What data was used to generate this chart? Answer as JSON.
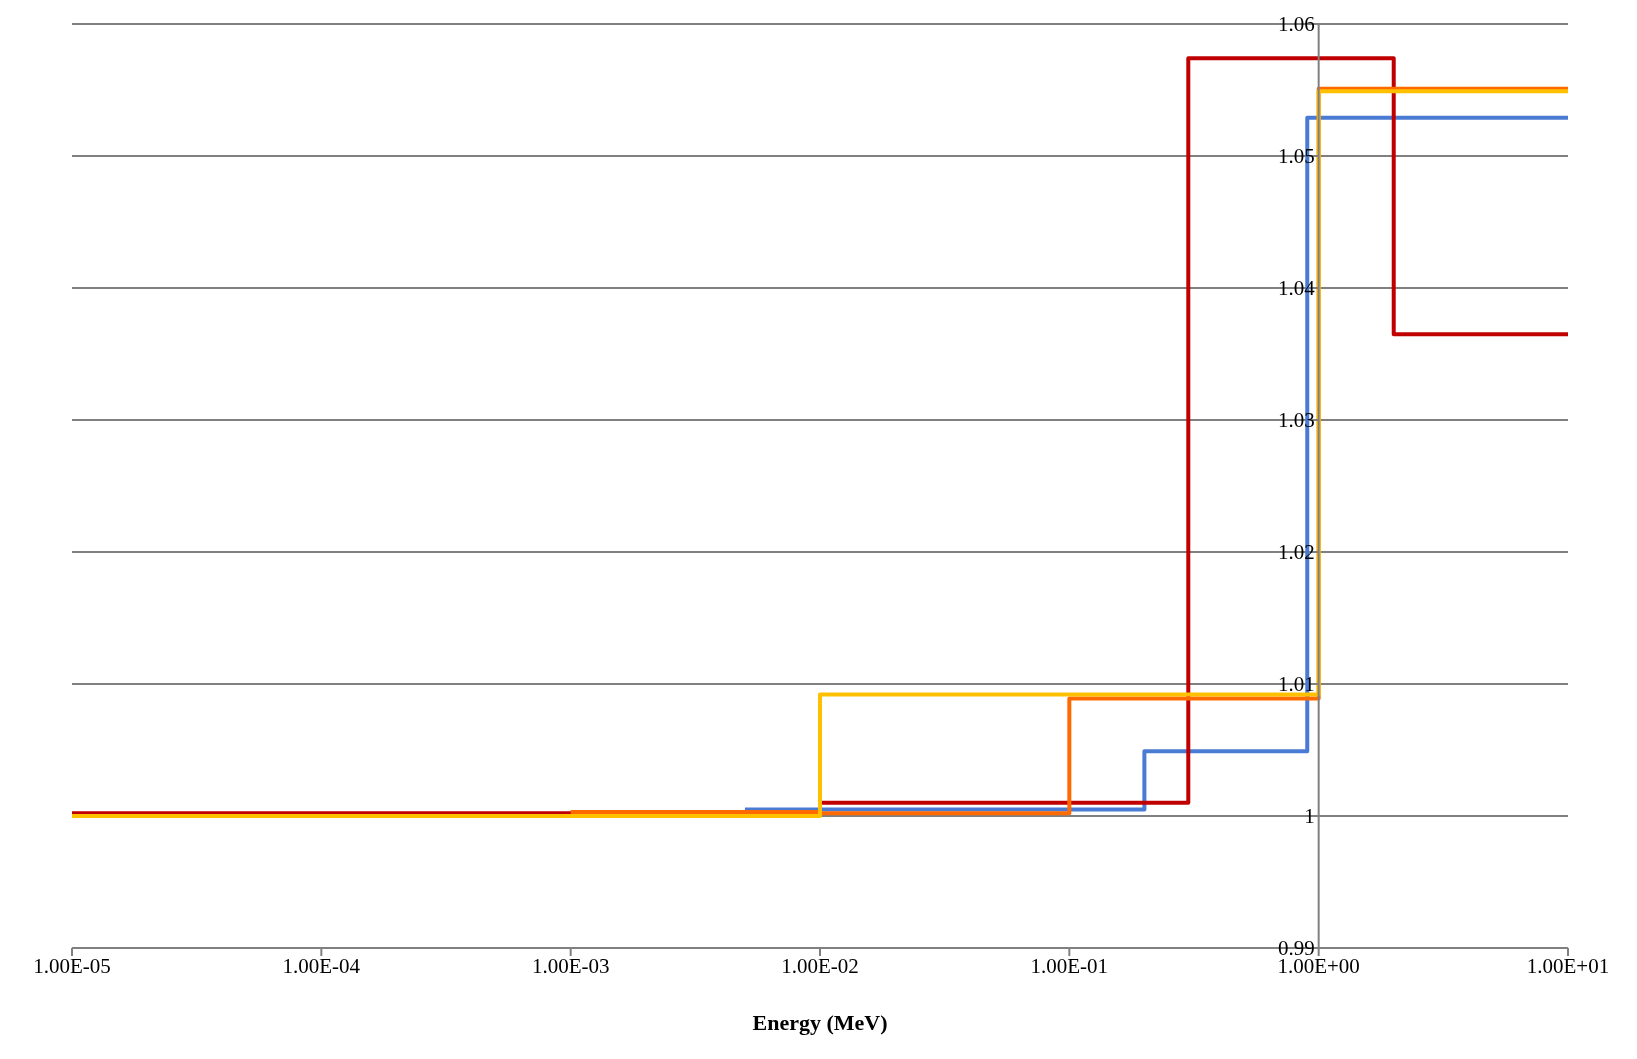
{
  "chart_data": {
    "type": "step",
    "xlabel": "Energy (MeV)",
    "log": "x",
    "grid": "y",
    "legend": false,
    "marker": "none",
    "line_style": "solid",
    "xlim": [
      1e-05,
      10
    ],
    "xticks": [
      {
        "value": 1e-05,
        "label": "1.00E-05"
      },
      {
        "value": 0.0001,
        "label": "1.00E-04"
      },
      {
        "value": 0.001,
        "label": "1.00E-03"
      },
      {
        "value": 0.01,
        "label": "1.00E-02"
      },
      {
        "value": 0.1,
        "label": "1.00E-01"
      },
      {
        "value": 1,
        "label": "1.00E+00"
      },
      {
        "value": 10,
        "label": "1.00E+01"
      }
    ],
    "ylim": [
      0.99,
      1.06
    ],
    "yticks": [
      0.99,
      1,
      1.01,
      1.02,
      1.03,
      1.04,
      1.05,
      1.06
    ],
    "series": [
      {
        "color": "#4a7bd4",
        "x": [
          0.005,
          0.2,
          0.9,
          10
        ],
        "values": [
          1.0005,
          1.0049,
          1.0529,
          1.0529
        ]
      },
      {
        "color": "#c00000",
        "x": [
          1e-05,
          0.01,
          0.3,
          2,
          10
        ],
        "values": [
          1.0002,
          1.001,
          1.0574,
          1.0365,
          1.0365
        ]
      },
      {
        "color": "#ff6a00",
        "x": [
          0.001,
          0.01,
          0.1,
          1,
          10
        ],
        "values": [
          1.0003,
          1.0002,
          1.0089,
          1.0551,
          1.0551
        ]
      },
      {
        "color": "#ffc000",
        "x": [
          1e-05,
          0.01,
          1,
          10
        ],
        "values": [
          1.0,
          1.0092,
          1.0549,
          1.0549
        ]
      }
    ]
  }
}
